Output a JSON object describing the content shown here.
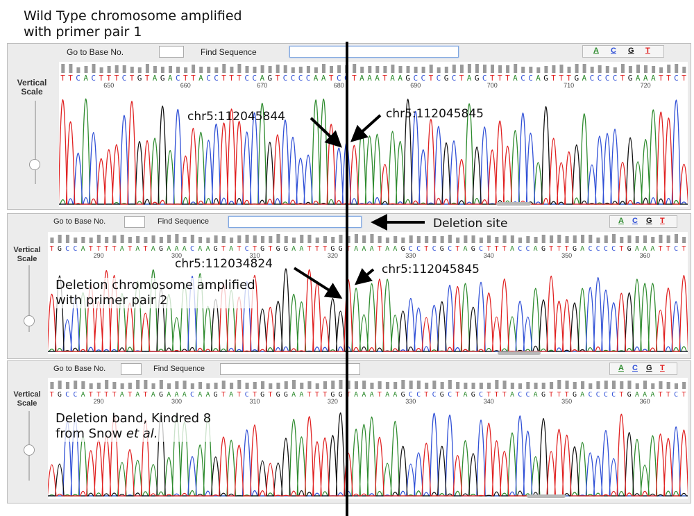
{
  "caption_top": {
    "line1": "Wild Type chromosome amplified",
    "line2": "with primer pair 1"
  },
  "colors": {
    "A": "#2e8b2e",
    "C": "#2f4fd6",
    "G": "#111111",
    "T": "#e02020"
  },
  "panels": [
    {
      "goto_label": "Go to Base No.",
      "find_label": "Find Sequence",
      "acgt": [
        "A",
        "C",
        "G",
        "T"
      ],
      "vertical_scale": "Vertical Scale",
      "sequence": "TTCACTTTCTGTAGACTTACCTTTCCAGTCCCCAATCCTAAATAAGCCTCGCTAGCTTTACCAGTTTGACCCCTGAAATTCT",
      "ticks": [
        "650",
        "660",
        "670",
        "680",
        "690",
        "700",
        "710",
        "720"
      ]
    },
    {
      "goto_label": "Go to Base No.",
      "find_label": "Find Sequence",
      "acgt": [
        "A",
        "C",
        "G",
        "T"
      ],
      "vertical_scale": "Vertical Scale",
      "sequence": "TGCCATTTTATATAGAAACAAGTATCTGTGGAATTTGGTAAATAAGCCTCGCTAGCTTTACCAGTTTGACCCCTGAAATTCT",
      "ticks": [
        "290",
        "300",
        "310",
        "320",
        "330",
        "340",
        "350",
        "360"
      ]
    },
    {
      "goto_label": "Go to Base No.",
      "find_label": "Find Sequence",
      "acgt": [
        "A",
        "C",
        "G",
        "T"
      ],
      "vertical_scale": "Vertical Scale",
      "sequence": "TGCCATTTTATATAGAAACAAGTATCTGTGGAATTTGGTAAATAAGCCTCGCTAGCTTTACCAGTTTGACCCCTGAAATTCT",
      "ticks": [
        "290",
        "300",
        "310",
        "320",
        "330",
        "340",
        "350",
        "360"
      ]
    }
  ],
  "annotations": {
    "p1_left": "chr5:112045844",
    "p1_right": "chr5:112045845",
    "deletion_site": "Deletion site",
    "p2_left": "chr5:112034824",
    "p2_right": "chr5:112045845",
    "p2_label_line1": "Deletion chromosome amplified",
    "p2_label_line2": "with primer pair 2",
    "p3_label_line1": "Deletion band, Kindred 8",
    "p3_label_line2_pre": "from Snow ",
    "p3_label_line2_em": "et al."
  }
}
